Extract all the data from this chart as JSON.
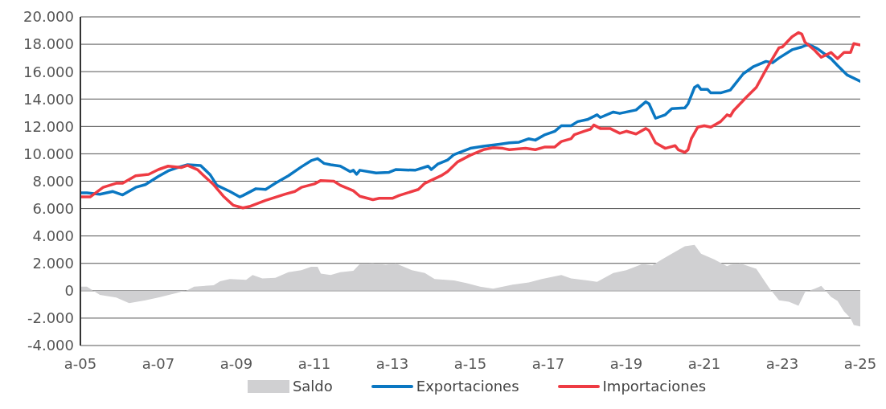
{
  "chart_data": {
    "type": "line",
    "xlim": [
      "2005-01",
      "2025-01"
    ],
    "ylim": [
      -4000,
      20000
    ],
    "xticks": [
      {
        "value": "2005-01",
        "label": "a-05"
      },
      {
        "value": "2007-01",
        "label": "a-07"
      },
      {
        "value": "2009-01",
        "label": "a-09"
      },
      {
        "value": "2011-01",
        "label": "a-11"
      },
      {
        "value": "2013-01",
        "label": "a-13"
      },
      {
        "value": "2015-01",
        "label": "a-15"
      },
      {
        "value": "2017-01",
        "label": "a-17"
      },
      {
        "value": "2019-01",
        "label": "a-19"
      },
      {
        "value": "2021-01",
        "label": "a-21"
      },
      {
        "value": "2023-01",
        "label": "a-23"
      },
      {
        "value": "2025-01",
        "label": "a-25"
      }
    ],
    "yticks": [
      {
        "value": -4000,
        "label": "-4.000"
      },
      {
        "value": -2000,
        "label": "-2.000"
      },
      0,
      {
        "value": 2000,
        "label": "2.000"
      },
      {
        "value": 4000,
        "label": "4.000"
      },
      {
        "value": 6000,
        "label": "6.000"
      },
      {
        "value": 8000,
        "label": "8.000"
      },
      {
        "value": 10000,
        "label": "10.000"
      },
      {
        "value": 12000,
        "label": "12.000"
      },
      {
        "value": 14000,
        "label": "14.000"
      },
      {
        "value": 16000,
        "label": "16.000"
      },
      {
        "value": 18000,
        "label": "18.000"
      },
      {
        "value": 20000,
        "label": "20.000"
      }
    ],
    "grid": "y",
    "legend": "bottom",
    "series": [
      {
        "name": "Saldo",
        "type": "area",
        "color": "#d0d0d2",
        "x": [
          "2005-01",
          "2005-03",
          "2005-07",
          "2005-12",
          "2006-04",
          "2006-09",
          "2007-01",
          "2007-06",
          "2007-10",
          "2007-12",
          "2008-06",
          "2008-08",
          "2008-11",
          "2009-04",
          "2009-06",
          "2009-09",
          "2010-01",
          "2010-05",
          "2010-09",
          "2010-12",
          "2011-02",
          "2011-03",
          "2011-06",
          "2011-09",
          "2012-01",
          "2012-03",
          "2012-07",
          "2012-11",
          "2013-02",
          "2013-07",
          "2013-11",
          "2014-02",
          "2014-08",
          "2014-12",
          "2015-04",
          "2015-08",
          "2015-11",
          "2016-02",
          "2016-07",
          "2016-11",
          "2017-05",
          "2017-08",
          "2018-01",
          "2018-04",
          "2018-09",
          "2019-01",
          "2019-06",
          "2019-09",
          "2019-12",
          "2020-03",
          "2020-07",
          "2020-10",
          "2020-12",
          "2021-04",
          "2021-08",
          "2021-09",
          "2021-12",
          "2022-05",
          "2022-09",
          "2022-12",
          "2023-03",
          "2023-06",
          "2023-08",
          "2023-11",
          "2024-01",
          "2024-04",
          "2024-06",
          "2024-08",
          "2024-10",
          "2024-11",
          "2025-01"
        ],
        "values": [
          300,
          300,
          -300,
          -500,
          -900,
          -700,
          -500,
          -200,
          50,
          300,
          400,
          700,
          850,
          800,
          1150,
          900,
          950,
          1350,
          1500,
          1750,
          1750,
          1250,
          1150,
          1350,
          1450,
          1950,
          2000,
          1900,
          2000,
          1500,
          1300,
          850,
          750,
          550,
          300,
          150,
          300,
          450,
          600,
          850,
          1150,
          900,
          750,
          650,
          1300,
          1500,
          1950,
          1850,
          2300,
          2700,
          3250,
          3350,
          2700,
          2300,
          1800,
          1900,
          2000,
          1600,
          200,
          -700,
          -800,
          -1100,
          -100,
          150,
          350,
          -450,
          -750,
          -1500,
          -2000,
          -2500,
          -2600
        ]
      },
      {
        "name": "Exportaciones",
        "color": "#0a77c2",
        "x": [
          "2005-01",
          "2005-03",
          "2005-07",
          "2005-11",
          "2006-02",
          "2006-06",
          "2006-09",
          "2007-01",
          "2007-04",
          "2007-07",
          "2007-10",
          "2008-02",
          "2008-05",
          "2008-07",
          "2008-11",
          "2009-02",
          "2009-03",
          "2009-07",
          "2009-10",
          "2010-01",
          "2010-05",
          "2010-09",
          "2010-12",
          "2011-02",
          "2011-04",
          "2011-06",
          "2011-09",
          "2011-12",
          "2012-01",
          "2012-02",
          "2012-03",
          "2012-08",
          "2012-12",
          "2013-02",
          "2013-08",
          "2013-12",
          "2014-01",
          "2014-03",
          "2014-06",
          "2014-08",
          "2015-01",
          "2015-05",
          "2015-10",
          "2016-01",
          "2016-04",
          "2016-07",
          "2016-09",
          "2016-12",
          "2017-03",
          "2017-05",
          "2017-08",
          "2017-10",
          "2018-01",
          "2018-04",
          "2018-05",
          "2018-09",
          "2018-11",
          "2019-04",
          "2019-07",
          "2019-08",
          "2019-10",
          "2020-01",
          "2020-03",
          "2020-07",
          "2020-08",
          "2020-10",
          "2020-11",
          "2020-12",
          "2021-02",
          "2021-03",
          "2021-06",
          "2021-09",
          "2022-01",
          "2022-04",
          "2022-08",
          "2022-10",
          "2022-12",
          "2023-04",
          "2023-07",
          "2023-09",
          "2023-12",
          "2024-04",
          "2024-06",
          "2024-09",
          "2025-01"
        ],
        "values": [
          7150,
          7150,
          7050,
          7250,
          7000,
          7550,
          7750,
          8350,
          8750,
          9000,
          9200,
          9150,
          8450,
          7700,
          7250,
          6850,
          6950,
          7450,
          7400,
          7850,
          8400,
          9050,
          9500,
          9650,
          9300,
          9200,
          9100,
          8700,
          8800,
          8500,
          8800,
          8600,
          8650,
          8850,
          8800,
          9100,
          8850,
          9250,
          9550,
          9950,
          10400,
          10550,
          10700,
          10800,
          10850,
          11100,
          11000,
          11400,
          11650,
          12050,
          12050,
          12350,
          12500,
          12850,
          12650,
          13050,
          12950,
          13200,
          13800,
          13650,
          12600,
          12850,
          13300,
          13350,
          13650,
          14850,
          15000,
          14700,
          14700,
          14450,
          14450,
          14650,
          15850,
          16350,
          16750,
          16650,
          17000,
          17600,
          17800,
          18000,
          17650,
          16950,
          16450,
          15750,
          15300
        ]
      },
      {
        "name": "Importaciones",
        "color": "#ee3b43",
        "x": [
          "2005-01",
          "2005-04",
          "2005-08",
          "2005-12",
          "2006-02",
          "2006-06",
          "2006-10",
          "2007-01",
          "2007-04",
          "2007-08",
          "2007-10",
          "2008-01",
          "2008-03",
          "2008-06",
          "2008-09",
          "2008-12",
          "2009-03",
          "2009-05",
          "2009-10",
          "2010-04",
          "2010-07",
          "2010-09",
          "2011-01",
          "2011-03",
          "2011-07",
          "2011-09",
          "2012-01",
          "2012-03",
          "2012-07",
          "2012-09",
          "2013-01",
          "2013-03",
          "2013-09",
          "2013-11",
          "2014-04",
          "2014-06",
          "2014-09",
          "2015-01",
          "2015-05",
          "2015-08",
          "2015-11",
          "2016-01",
          "2016-06",
          "2016-09",
          "2016-12",
          "2017-03",
          "2017-05",
          "2017-08",
          "2017-09",
          "2017-12",
          "2018-02",
          "2018-03",
          "2018-05",
          "2018-08",
          "2018-11",
          "2019-01",
          "2019-04",
          "2019-07",
          "2019-08",
          "2019-10",
          "2020-01",
          "2020-04",
          "2020-05",
          "2020-07",
          "2020-08",
          "2020-09",
          "2020-11",
          "2021-01",
          "2021-03",
          "2021-06",
          "2021-08",
          "2021-09",
          "2021-10",
          "2022-02",
          "2022-05",
          "2022-08",
          "2022-10",
          "2022-12",
          "2023-01",
          "2023-04",
          "2023-06",
          "2023-07",
          "2023-08",
          "2023-11",
          "2024-01",
          "2024-04",
          "2024-06",
          "2024-08",
          "2024-10",
          "2024-11",
          "2025-01"
        ],
        "values": [
          6850,
          6850,
          7550,
          7850,
          7850,
          8400,
          8500,
          8850,
          9100,
          9000,
          9150,
          8850,
          8400,
          7750,
          6900,
          6250,
          6050,
          6150,
          6600,
          7050,
          7250,
          7550,
          7800,
          8050,
          8000,
          7700,
          7300,
          6900,
          6650,
          6750,
          6750,
          6950,
          7400,
          7850,
          8400,
          8700,
          9400,
          9900,
          10300,
          10450,
          10400,
          10300,
          10400,
          10300,
          10500,
          10500,
          10900,
          11100,
          11400,
          11650,
          11800,
          12100,
          11850,
          11850,
          11500,
          11650,
          11450,
          11850,
          11700,
          10800,
          10400,
          10600,
          10300,
          10100,
          10300,
          11100,
          11950,
          12050,
          11950,
          12350,
          12850,
          12750,
          13150,
          14150,
          14850,
          16150,
          16950,
          17750,
          17800,
          18550,
          18850,
          18750,
          18150,
          17550,
          17050,
          17400,
          16950,
          17400,
          17400,
          18050,
          17950
        ]
      }
    ]
  }
}
